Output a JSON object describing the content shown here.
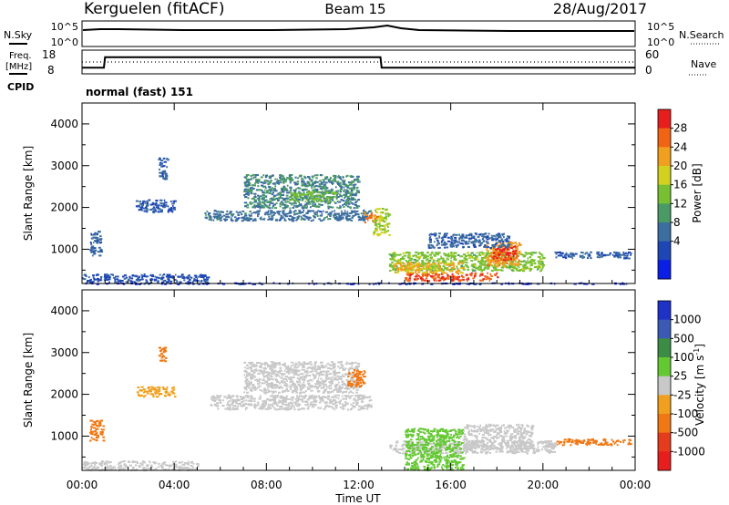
{
  "header": {
    "station": "Kerguelen (fitACF)",
    "beam": "Beam 15",
    "date": "28/Aug/2017"
  },
  "nsky_panel": {
    "left_label": "N.Sky",
    "right_label": "N.Search",
    "left_ticks": [
      "10^5",
      "10^0"
    ],
    "right_ticks": [
      "10^5",
      "10^0"
    ]
  },
  "freq_panel": {
    "left_label_1": "Freq.",
    "left_label_2": "[MHz]",
    "right_label": "Nave",
    "left_ticks": [
      "18",
      "8"
    ],
    "right_ticks": [
      "60",
      "0"
    ],
    "freq_mhz": [
      {
        "t": 0.0,
        "v": 10.6
      },
      {
        "t": 0.95,
        "v": 10.6
      },
      {
        "t": 1.0,
        "v": 15.0
      },
      {
        "t": 12.95,
        "v": 15.0
      },
      {
        "t": 13.0,
        "v": 10.6
      },
      {
        "t": 24.0,
        "v": 10.6
      }
    ],
    "nave": [
      {
        "t": 0.0,
        "v": 30
      },
      {
        "t": 24.0,
        "v": 30
      }
    ]
  },
  "cpid": {
    "label": "CPID",
    "text": "normal (fast) 151"
  },
  "x_axis": {
    "label": "Time UT",
    "ticks": [
      "00:00",
      "04:00",
      "08:00",
      "12:00",
      "16:00",
      "20:00",
      "00:00"
    ]
  },
  "power_panel": {
    "ylabel": "Slant Range [km]",
    "yticks": [
      "1000",
      "2000",
      "3000",
      "4000"
    ],
    "colorbar_label": "Power [dB]",
    "colorbar_ticks": [
      "4",
      "8",
      "12",
      "16",
      "20",
      "24",
      "28"
    ],
    "colors": [
      "#0a1ee6",
      "#1e46b4",
      "#3c6ea0",
      "#4a9a66",
      "#78c032",
      "#d2d21e",
      "#f0a01e",
      "#f06414",
      "#e61e1e"
    ]
  },
  "velocity_panel": {
    "ylabel": "Slant Range [km]",
    "yticks": [
      "1000",
      "2000",
      "3000",
      "4000"
    ],
    "colorbar_label": "Velocity [m s",
    "colorbar_label_sup": "-1",
    "colorbar_label_end": "]",
    "colorbar_ticks": [
      "1000",
      "500",
      "100",
      "25",
      "-25",
      "-100",
      "-500",
      "-1000"
    ],
    "colors": [
      "#1e32c8",
      "#3c5ab4",
      "#3c8c46",
      "#64c832",
      "#c8c8c8",
      "#f0a01e",
      "#f07814",
      "#e63c1e",
      "#e61e1e"
    ]
  },
  "chart_data": [
    {
      "type": "heatmap",
      "title": "Power",
      "xlabel": "Time UT",
      "ylabel": "Slant Range [km]",
      "xlim": [
        0,
        24
      ],
      "ylim": [
        180,
        4500
      ],
      "colorbar": {
        "label": "Power [dB]",
        "range": [
          0,
          32
        ]
      },
      "regions": [
        {
          "t0": 0.0,
          "t1": 24.0,
          "r0": 180,
          "r1": 210,
          "v": 3
        },
        {
          "t0": 0.0,
          "t1": 5.5,
          "r0": 220,
          "r1": 420,
          "v": 6
        },
        {
          "t0": 0.3,
          "t1": 0.8,
          "r0": 850,
          "r1": 1450,
          "v": 8
        },
        {
          "t0": 2.3,
          "t1": 4.0,
          "r0": 1900,
          "r1": 2200,
          "v": 7
        },
        {
          "t0": 3.3,
          "t1": 3.7,
          "r0": 2700,
          "r1": 3200,
          "v": 8
        },
        {
          "t0": 5.3,
          "t1": 12.5,
          "r0": 1700,
          "r1": 1950,
          "v": 9
        },
        {
          "t0": 7.0,
          "t1": 12.0,
          "r0": 2000,
          "r1": 2800,
          "v": 11
        },
        {
          "t0": 9.0,
          "t1": 11.0,
          "r0": 2150,
          "r1": 2400,
          "v": 15
        },
        {
          "t0": 12.2,
          "t1": 12.8,
          "r0": 1650,
          "r1": 1900,
          "v": 26
        },
        {
          "t0": 12.6,
          "t1": 13.3,
          "r0": 1350,
          "r1": 2000,
          "v": 18
        },
        {
          "t0": 13.3,
          "t1": 20.0,
          "r0": 500,
          "r1": 950,
          "v": 16
        },
        {
          "t0": 14.0,
          "t1": 18.0,
          "r0": 260,
          "r1": 450,
          "v": 28
        },
        {
          "t0": 13.5,
          "t1": 16.5,
          "r0": 450,
          "r1": 700,
          "v": 22
        },
        {
          "t0": 17.5,
          "t1": 19.0,
          "r0": 600,
          "r1": 1200,
          "v": 24
        },
        {
          "t0": 17.8,
          "t1": 18.8,
          "r0": 750,
          "r1": 1100,
          "v": 29
        },
        {
          "t0": 15.0,
          "t1": 18.5,
          "r0": 1050,
          "r1": 1400,
          "v": 8
        },
        {
          "t0": 20.5,
          "t1": 23.8,
          "r0": 800,
          "r1": 950,
          "v": 7
        }
      ]
    },
    {
      "type": "heatmap",
      "title": "Velocity",
      "xlabel": "Time UT",
      "ylabel": "Slant Range [km]",
      "xlim": [
        0,
        24
      ],
      "ylim": [
        180,
        4500
      ],
      "colorbar": {
        "label": "Velocity [m s-1]",
        "range": [
          -1000,
          1000
        ]
      },
      "regions": [
        {
          "t0": 0.0,
          "t1": 5.0,
          "r0": 200,
          "r1": 420,
          "v": 10
        },
        {
          "t0": 0.3,
          "t1": 0.9,
          "r0": 900,
          "r1": 1400,
          "v": -150
        },
        {
          "t0": 2.3,
          "t1": 4.0,
          "r0": 1950,
          "r1": 2200,
          "v": -50
        },
        {
          "t0": 3.3,
          "t1": 3.6,
          "r0": 2800,
          "r1": 3150,
          "v": -300
        },
        {
          "t0": 5.5,
          "t1": 12.5,
          "r0": 1650,
          "r1": 2000,
          "v": 0
        },
        {
          "t0": 7.0,
          "t1": 12.0,
          "r0": 2050,
          "r1": 2800,
          "v": 5
        },
        {
          "t0": 11.5,
          "t1": 12.3,
          "r0": 2200,
          "r1": 2600,
          "v": -200
        },
        {
          "t0": 13.3,
          "t1": 20.5,
          "r0": 600,
          "r1": 900,
          "v": 10
        },
        {
          "t0": 14.0,
          "t1": 16.5,
          "r0": 200,
          "r1": 1200,
          "v": 60
        },
        {
          "t0": 16.5,
          "t1": 19.5,
          "r0": 700,
          "r1": 1300,
          "v": 0
        },
        {
          "t0": 20.5,
          "t1": 23.8,
          "r0": 800,
          "r1": 950,
          "v": -200
        }
      ]
    }
  ]
}
